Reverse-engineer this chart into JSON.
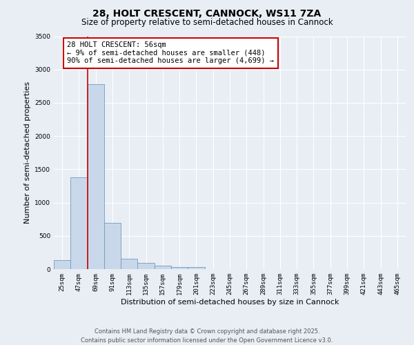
{
  "title_line1": "28, HOLT CRESCENT, CANNOCK, WS11 7ZA",
  "title_line2": "Size of property relative to semi-detached houses in Cannock",
  "xlabel": "Distribution of semi-detached houses by size in Cannock",
  "ylabel": "Number of semi-detached properties",
  "bin_labels": [
    "25sqm",
    "47sqm",
    "69sqm",
    "91sqm",
    "113sqm",
    "135sqm",
    "157sqm",
    "179sqm",
    "201sqm",
    "223sqm",
    "245sqm",
    "267sqm",
    "289sqm",
    "311sqm",
    "333sqm",
    "355sqm",
    "377sqm",
    "399sqm",
    "421sqm",
    "443sqm",
    "465sqm"
  ],
  "bar_heights": [
    130,
    1380,
    2780,
    700,
    160,
    90,
    50,
    30,
    30,
    0,
    0,
    0,
    0,
    0,
    0,
    0,
    0,
    0,
    0,
    0,
    0
  ],
  "bar_color": "#c8d8ea",
  "bar_edge_color": "#7799bb",
  "vline_x_idx": 1,
  "vline_color": "#cc0000",
  "annotation_text": "28 HOLT CRESCENT: 56sqm\n← 9% of semi-detached houses are smaller (448)\n90% of semi-detached houses are larger (4,699) →",
  "annotation_box_facecolor": "#ffffff",
  "annotation_box_edgecolor": "#cc0000",
  "ylim": [
    0,
    3500
  ],
  "yticks": [
    0,
    500,
    1000,
    1500,
    2000,
    2500,
    3000,
    3500
  ],
  "footer_line1": "Contains HM Land Registry data © Crown copyright and database right 2025.",
  "footer_line2": "Contains public sector information licensed under the Open Government Licence v3.0.",
  "bg_color": "#e8eef4",
  "plot_bg_color": "#e8eef4",
  "grid_color": "#ffffff",
  "title_fontsize": 10,
  "subtitle_fontsize": 8.5,
  "tick_fontsize": 6.5,
  "label_fontsize": 8,
  "annotation_fontsize": 7.5,
  "footer_fontsize": 6
}
